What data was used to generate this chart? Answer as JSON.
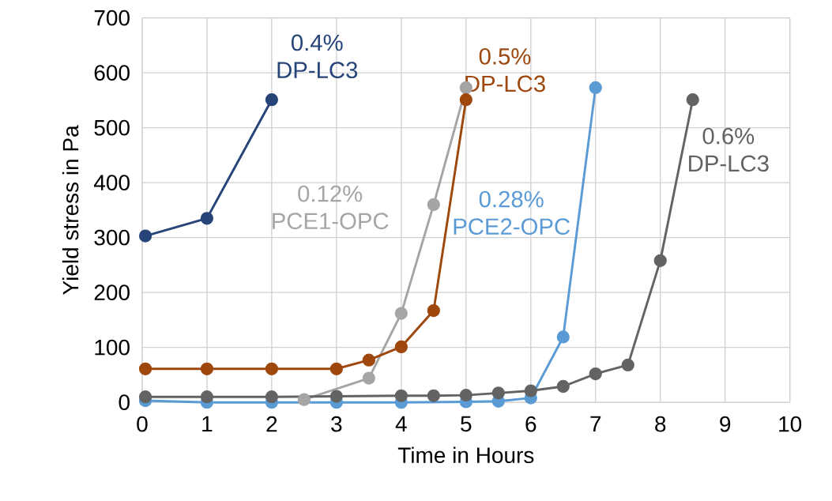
{
  "chart_data": {
    "type": "line",
    "xlabel": "Time in Hours",
    "ylabel": "Yield stress in Pa",
    "xlim": [
      0,
      10
    ],
    "xticks": [
      0,
      1,
      2,
      3,
      4,
      5,
      6,
      7,
      8,
      9,
      10
    ],
    "ylim": [
      0,
      700
    ],
    "yticks": [
      0,
      100,
      200,
      300,
      400,
      500,
      600,
      700
    ],
    "grid": true,
    "legend": false,
    "marker": "circle",
    "line_style": "solid",
    "series": [
      {
        "name": "0.4% DP-LC3",
        "color": "#264478",
        "x": [
          0.05,
          1,
          2
        ],
        "values": [
          303,
          335,
          551
        ]
      },
      {
        "name": "0.12% PCE1-OPC",
        "color": "#a5a5a5",
        "x": [
          2.5,
          3.5,
          4,
          4.5,
          5
        ],
        "values": [
          5,
          44,
          162,
          360,
          573
        ]
      },
      {
        "name": "0.5% DP-LC3",
        "color": "#9e480e",
        "x": [
          0.05,
          1,
          2,
          3,
          3.5,
          4,
          4.5,
          5
        ],
        "values": [
          61,
          61,
          61,
          61,
          77,
          101,
          167,
          551
        ]
      },
      {
        "name": "0.28% PCE2-OPC",
        "color": "#5b9bd5",
        "x": [
          0.05,
          1,
          2,
          3,
          4,
          5,
          5.5,
          6,
          6.5,
          7
        ],
        "values": [
          3,
          0,
          0,
          0,
          0,
          1,
          2,
          8,
          119,
          573
        ]
      },
      {
        "name": "0.6% DP-LC3",
        "color": "#636363",
        "x": [
          0.05,
          1,
          2,
          3,
          4,
          4.5,
          5,
          5.5,
          6,
          6.5,
          7,
          7.5,
          8,
          8.5
        ],
        "values": [
          10,
          10,
          10,
          11,
          12,
          12,
          13,
          17,
          21,
          29,
          52,
          68,
          258,
          551
        ]
      }
    ]
  }
}
